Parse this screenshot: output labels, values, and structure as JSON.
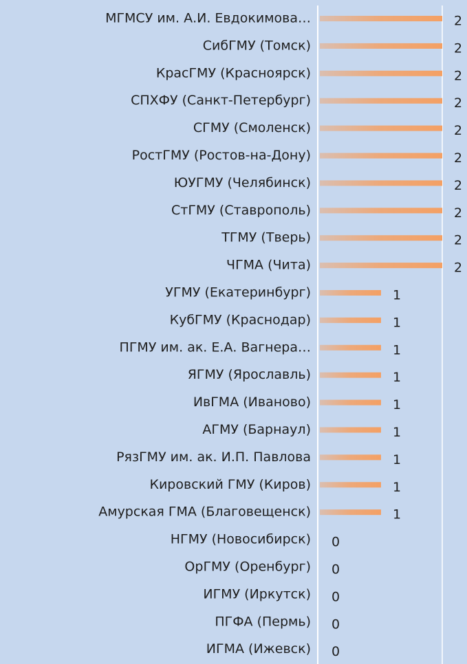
{
  "chart_data": {
    "type": "bar",
    "categories": [
      "МГМСУ им. А.И. Евдокимова…",
      "СибГМУ (Томск)",
      "КрасГМУ (Красноярск)",
      "СПХФУ (Санкт-Петербург)",
      "СГМУ (Смоленск)",
      "РостГМУ (Ростов-на-Дону)",
      "ЮУГМУ (Челябинск)",
      "СтГМУ (Ставрополь)",
      "ТГМУ (Тверь)",
      "ЧГМА (Чита)",
      "УГМУ (Екатеринбург)",
      "КубГМУ (Краснодар)",
      "ПГМУ им. ак. Е.А. Вагнера…",
      "ЯГМУ (Ярославль)",
      "ИвГМА (Иваново)",
      "АГМУ (Барнаул)",
      "РязГМУ им. ак. И.П. Павлова",
      "Кировский ГМУ (Киров)",
      "Амурская ГМА (Благовещенск)",
      "НГМУ (Новосибирск)",
      "ОрГМУ (Оренбург)",
      "ИГМУ (Иркутск)",
      "ПГФА (Пермь)",
      "ИГМА (Ижевск)"
    ],
    "values": [
      2,
      2,
      2,
      2,
      2,
      2,
      2,
      2,
      2,
      2,
      1,
      1,
      1,
      1,
      1,
      1,
      1,
      1,
      1,
      0,
      0,
      0,
      0,
      0
    ],
    "color": "#f4a064",
    "xlim": [
      0,
      2
    ],
    "grid": true
  }
}
